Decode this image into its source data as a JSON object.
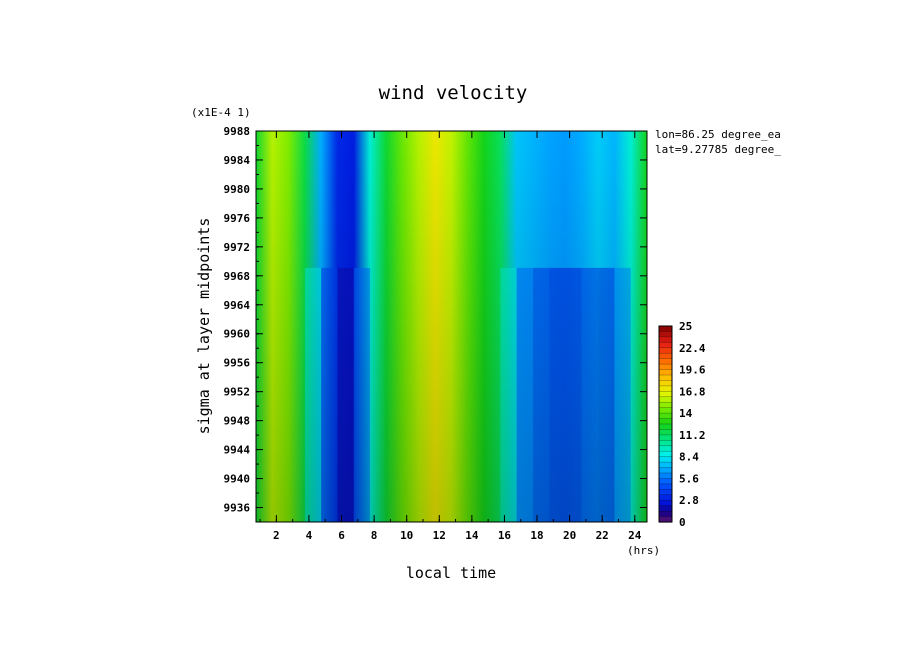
{
  "chart_data": {
    "type": "heatmap",
    "title": "wind velocity",
    "xlabel": "local time",
    "xunit": "(hrs)",
    "ylabel": "sigma at layer midpoints",
    "yscale_note": "(x1E-4 1)",
    "annotations": [
      "lon=86.25 degree_ea",
      "lat=9.27785 degree_"
    ],
    "xlim": [
      0.75,
      24.75
    ],
    "ylim": [
      9988,
      9934
    ],
    "x_ticks": [
      "2",
      "4",
      "6",
      "8",
      "10",
      "12",
      "14",
      "16",
      "18",
      "20",
      "22",
      "24"
    ],
    "y_ticks": [
      "9936",
      "9940",
      "9944",
      "9948",
      "9952",
      "9956",
      "9960",
      "9964",
      "9968",
      "9972",
      "9976",
      "9980",
      "9984",
      "9988"
    ],
    "colorbar": {
      "min": 0,
      "max": 25,
      "tick_labels": [
        "25",
        "22.4",
        "19.6",
        "16.8",
        "14",
        "11.2",
        "8.4",
        "5.6",
        "2.8",
        "0"
      ]
    },
    "x": [
      0.75,
      1.75,
      2.75,
      3.75,
      4.75,
      5.75,
      6.75,
      7.75,
      8.75,
      9.75,
      10.75,
      11.75,
      12.75,
      13.75,
      14.75,
      15.75,
      16.75,
      17.75,
      18.75,
      19.75,
      20.75,
      21.75,
      22.75,
      23.75,
      24.75
    ],
    "y": [
      9934,
      9988
    ],
    "values": [
      [
        12.0,
        15.6,
        14.6,
        11.6,
        6.8,
        3.2,
        2.8,
        9.0,
        12.0,
        14.2,
        15.6,
        17.0,
        15.8,
        14.0,
        12.4,
        11.2,
        7.4,
        7.0,
        6.6,
        6.4,
        6.8,
        7.6,
        7.0,
        9.0,
        12.4
      ],
      [
        12.0,
        15.6,
        14.6,
        11.6,
        6.0,
        2.0,
        1.6,
        9.0,
        12.0,
        14.2,
        15.6,
        17.0,
        15.8,
        14.0,
        12.4,
        11.2,
        6.8,
        3.8,
        3.4,
        2.2,
        3.4,
        4.0,
        2.8,
        9.0,
        12.4
      ]
    ]
  }
}
